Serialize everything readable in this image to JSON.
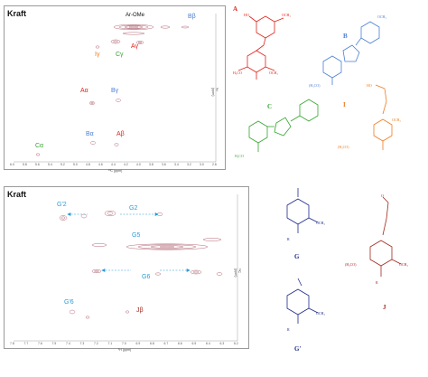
{
  "panel_top": {
    "label": "Kraft",
    "x_axis_label": "¹³C (ppm)",
    "y_axis_label": "¹H (ppm)",
    "x_ticks": [
      "6.0",
      "5.8",
      "5.6",
      "5.4",
      "5.2",
      "5.0",
      "4.8",
      "4.6",
      "4.4",
      "4.2",
      "4.0",
      "3.8",
      "3.6",
      "3.4",
      "3.2",
      "3.0",
      "2.8"
    ],
    "annotations": {
      "ar_ome": "Ar-OMe",
      "b_beta": "Bβ",
      "a_gamma": "Aγ",
      "i_gamma": "Iγ",
      "c_gamma": "Cγ",
      "a_alpha": "Aα",
      "b_gamma": "Bγ",
      "b_alpha": "Bα",
      "a_beta": "Aβ",
      "c_alpha": "Cα"
    }
  },
  "panel_bottom": {
    "label": "Kraft",
    "x_axis_label": "¹H (ppm)",
    "y_axis_label": "¹³C (ppm)",
    "x_ticks": [
      "7.8",
      "7.7",
      "7.6",
      "7.5",
      "7.4",
      "7.3",
      "7.2",
      "7.1",
      "7.0",
      "6.9",
      "6.8",
      "6.7",
      "6.6",
      "6.5",
      "6.4",
      "6.3",
      "6.2"
    ],
    "annotations": {
      "g_prime_2": "G'2",
      "g2": "G2",
      "g5": "G5",
      "g6": "G6",
      "g_prime_6": "G'6",
      "j_beta": "Jβ"
    }
  },
  "structures": {
    "A": "A",
    "B": "B",
    "C": "C",
    "I": "I",
    "G": "G",
    "G_prime": "G'",
    "J": "J",
    "och3": "OCH₃",
    "h3co": "(H₃CO)",
    "alpha": "α",
    "beta": "β",
    "gamma": "γ",
    "r": "R"
  },
  "colors": {
    "contour": "#b46a78",
    "red": "#e0241b",
    "blue": "#4a7fd4",
    "orange": "#ef7a1e",
    "green": "#35a52f",
    "darkred": "#a0291c",
    "navy": "#1d2a8a",
    "cyan": "#2a9bd6"
  }
}
